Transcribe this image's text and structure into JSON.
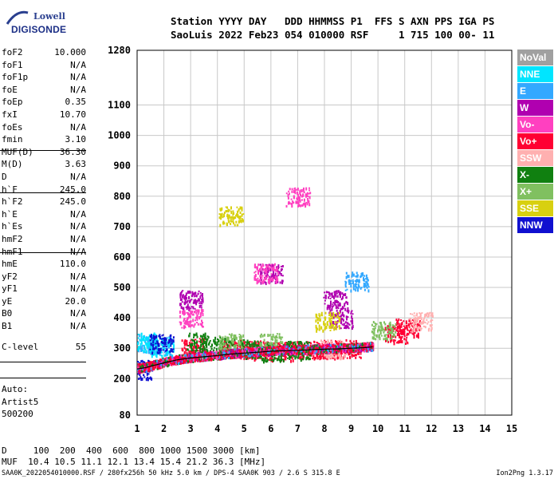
{
  "logo": {
    "line1": "Lowell",
    "line2": "DIGISONDE"
  },
  "header": {
    "line1": "Station YYYY DAY   DDD HHMMSS P1  FFS S AXN PPS IGA PS",
    "line2": "SaoLuis 2022 Feb23 054 010000 RSF     1 715 100 00- 11"
  },
  "params": [
    {
      "name": "foF2",
      "value": "10.000"
    },
    {
      "name": "foF1",
      "value": "N/A"
    },
    {
      "name": "foF1p",
      "value": "N/A"
    },
    {
      "name": "foE",
      "value": "N/A"
    },
    {
      "name": "foEp",
      "value": "0.35"
    },
    {
      "name": "fxI",
      "value": "10.70"
    },
    {
      "name": "foEs",
      "value": "N/A"
    },
    {
      "name": "fmin",
      "value": "3.10"
    },
    {
      "name": "MUF(D)",
      "value": "36.30"
    },
    {
      "name": "M(D)",
      "value": "3.63"
    },
    {
      "name": "D",
      "value": "N/A"
    },
    {
      "name": "h`F",
      "value": "245.0"
    },
    {
      "name": "h`F2",
      "value": "245.0"
    },
    {
      "name": "h`E",
      "value": "N/A"
    },
    {
      "name": "h`Es",
      "value": "N/A"
    },
    {
      "name": "hmF2",
      "value": "N/A"
    },
    {
      "name": "hmF1",
      "value": "N/A"
    },
    {
      "name": "hmE",
      "value": "110.0"
    },
    {
      "name": "yF2",
      "value": "N/A"
    },
    {
      "name": "yF1",
      "value": "N/A"
    },
    {
      "name": "yE",
      "value": "20.0"
    },
    {
      "name": "B0",
      "value": "N/A"
    },
    {
      "name": "B1",
      "value": "N/A"
    },
    {
      "name": "C-level",
      "value": "55"
    }
  ],
  "auto": {
    "l1": "Auto:",
    "l2": "Artist5",
    "l3": "500200"
  },
  "legend": [
    {
      "label": "NoVal",
      "color": "#a0a0a0"
    },
    {
      "label": "NNE",
      "color": "#00e5ff"
    },
    {
      "label": "E",
      "color": "#33a8ff"
    },
    {
      "label": "W",
      "color": "#b000b0"
    },
    {
      "label": "Vo-",
      "color": "#ff40c0"
    },
    {
      "label": "Vo+",
      "color": "#ff0033"
    },
    {
      "label": "SSW",
      "color": "#ffb0b0"
    },
    {
      "label": "X-",
      "color": "#108010"
    },
    {
      "label": "X+",
      "color": "#80c060"
    },
    {
      "label": "SSE",
      "color": "#d8d010"
    },
    {
      "label": "NNW",
      "color": "#1010d0"
    }
  ],
  "bottom": {
    "line1": "D     100  200  400  600  800 1000 1500 3000 [km]",
    "line2": "MUF  10.4 10.5 11.1 12.1 13.4 15.4 21.2 36.3 [MHz]"
  },
  "footer": {
    "left": "SAA0K_2022054010000.RSF / 280fx256h 50 kHz 5.0 km / DPS-4 SAA0K 903 / 2.6 S 315.8 E",
    "right": "Ion2Png 1.3.17"
  },
  "chart_data": {
    "type": "scatter",
    "xlabel": "",
    "ylabel": "",
    "xlim": [
      1,
      15
    ],
    "ylim": [
      80,
      1280
    ],
    "xticks": [
      1,
      2,
      3,
      4,
      5,
      6,
      7,
      8,
      9,
      10,
      11,
      12,
      13,
      14,
      15
    ],
    "yticks": [
      80,
      200,
      300,
      400,
      500,
      600,
      700,
      800,
      900,
      1000,
      1100,
      1280
    ],
    "grid": true,
    "legend_position": "right",
    "trace": {
      "name": "F2 trace",
      "x": [
        1.0,
        1.3,
        1.6,
        2.0,
        2.5,
        3.0,
        3.5,
        4.0,
        4.5,
        5.0,
        5.5,
        6.0,
        6.5,
        7.0,
        7.5,
        8.0,
        8.5,
        9.0,
        9.5,
        9.8
      ],
      "y": [
        232,
        236,
        243,
        252,
        262,
        268,
        272,
        276,
        281,
        284,
        287,
        290,
        292,
        293,
        295,
        297,
        298,
        300,
        302,
        305
      ]
    },
    "clusters": [
      {
        "name": "Vo+",
        "x": [
          3.1,
          4.6,
          5.5,
          6.4,
          7.4,
          8.1,
          8.9,
          10.7,
          11.1
        ],
        "y": [
          305,
          300,
          296,
          292,
          296,
          298,
          300,
          348,
          368
        ]
      },
      {
        "name": "X-",
        "x": [
          3.3,
          4.2,
          5.2,
          6.0,
          7.0
        ],
        "y": [
          322,
          310,
          300,
          290,
          296
        ]
      },
      {
        "name": "X+",
        "x": [
          4.5,
          6.0,
          10.2
        ],
        "y": [
          320,
          320,
          360
        ]
      },
      {
        "name": "W",
        "x": [
          3.0,
          6.0,
          8.4,
          8.6
        ],
        "y": [
          462,
          548,
          462,
          398
        ]
      },
      {
        "name": "Vo-",
        "x": [
          3.0,
          5.8,
          7.0
        ],
        "y": [
          400,
          550,
          800
        ]
      },
      {
        "name": "E",
        "x": [
          1.2,
          1.8,
          9.2
        ],
        "y": [
          318,
          310,
          522
        ]
      },
      {
        "name": "NNE",
        "x": [
          1.3,
          1.9
        ],
        "y": [
          322,
          306
        ]
      },
      {
        "name": "SSE",
        "x": [
          4.5,
          8.1
        ],
        "y": [
          738,
          390
        ]
      },
      {
        "name": "SSW",
        "x": [
          8.3,
          11.6
        ],
        "y": [
          300,
          390
        ]
      },
      {
        "name": "NNW",
        "x": [
          1.1,
          1.9
        ],
        "y": [
          232,
          318
        ]
      }
    ]
  }
}
